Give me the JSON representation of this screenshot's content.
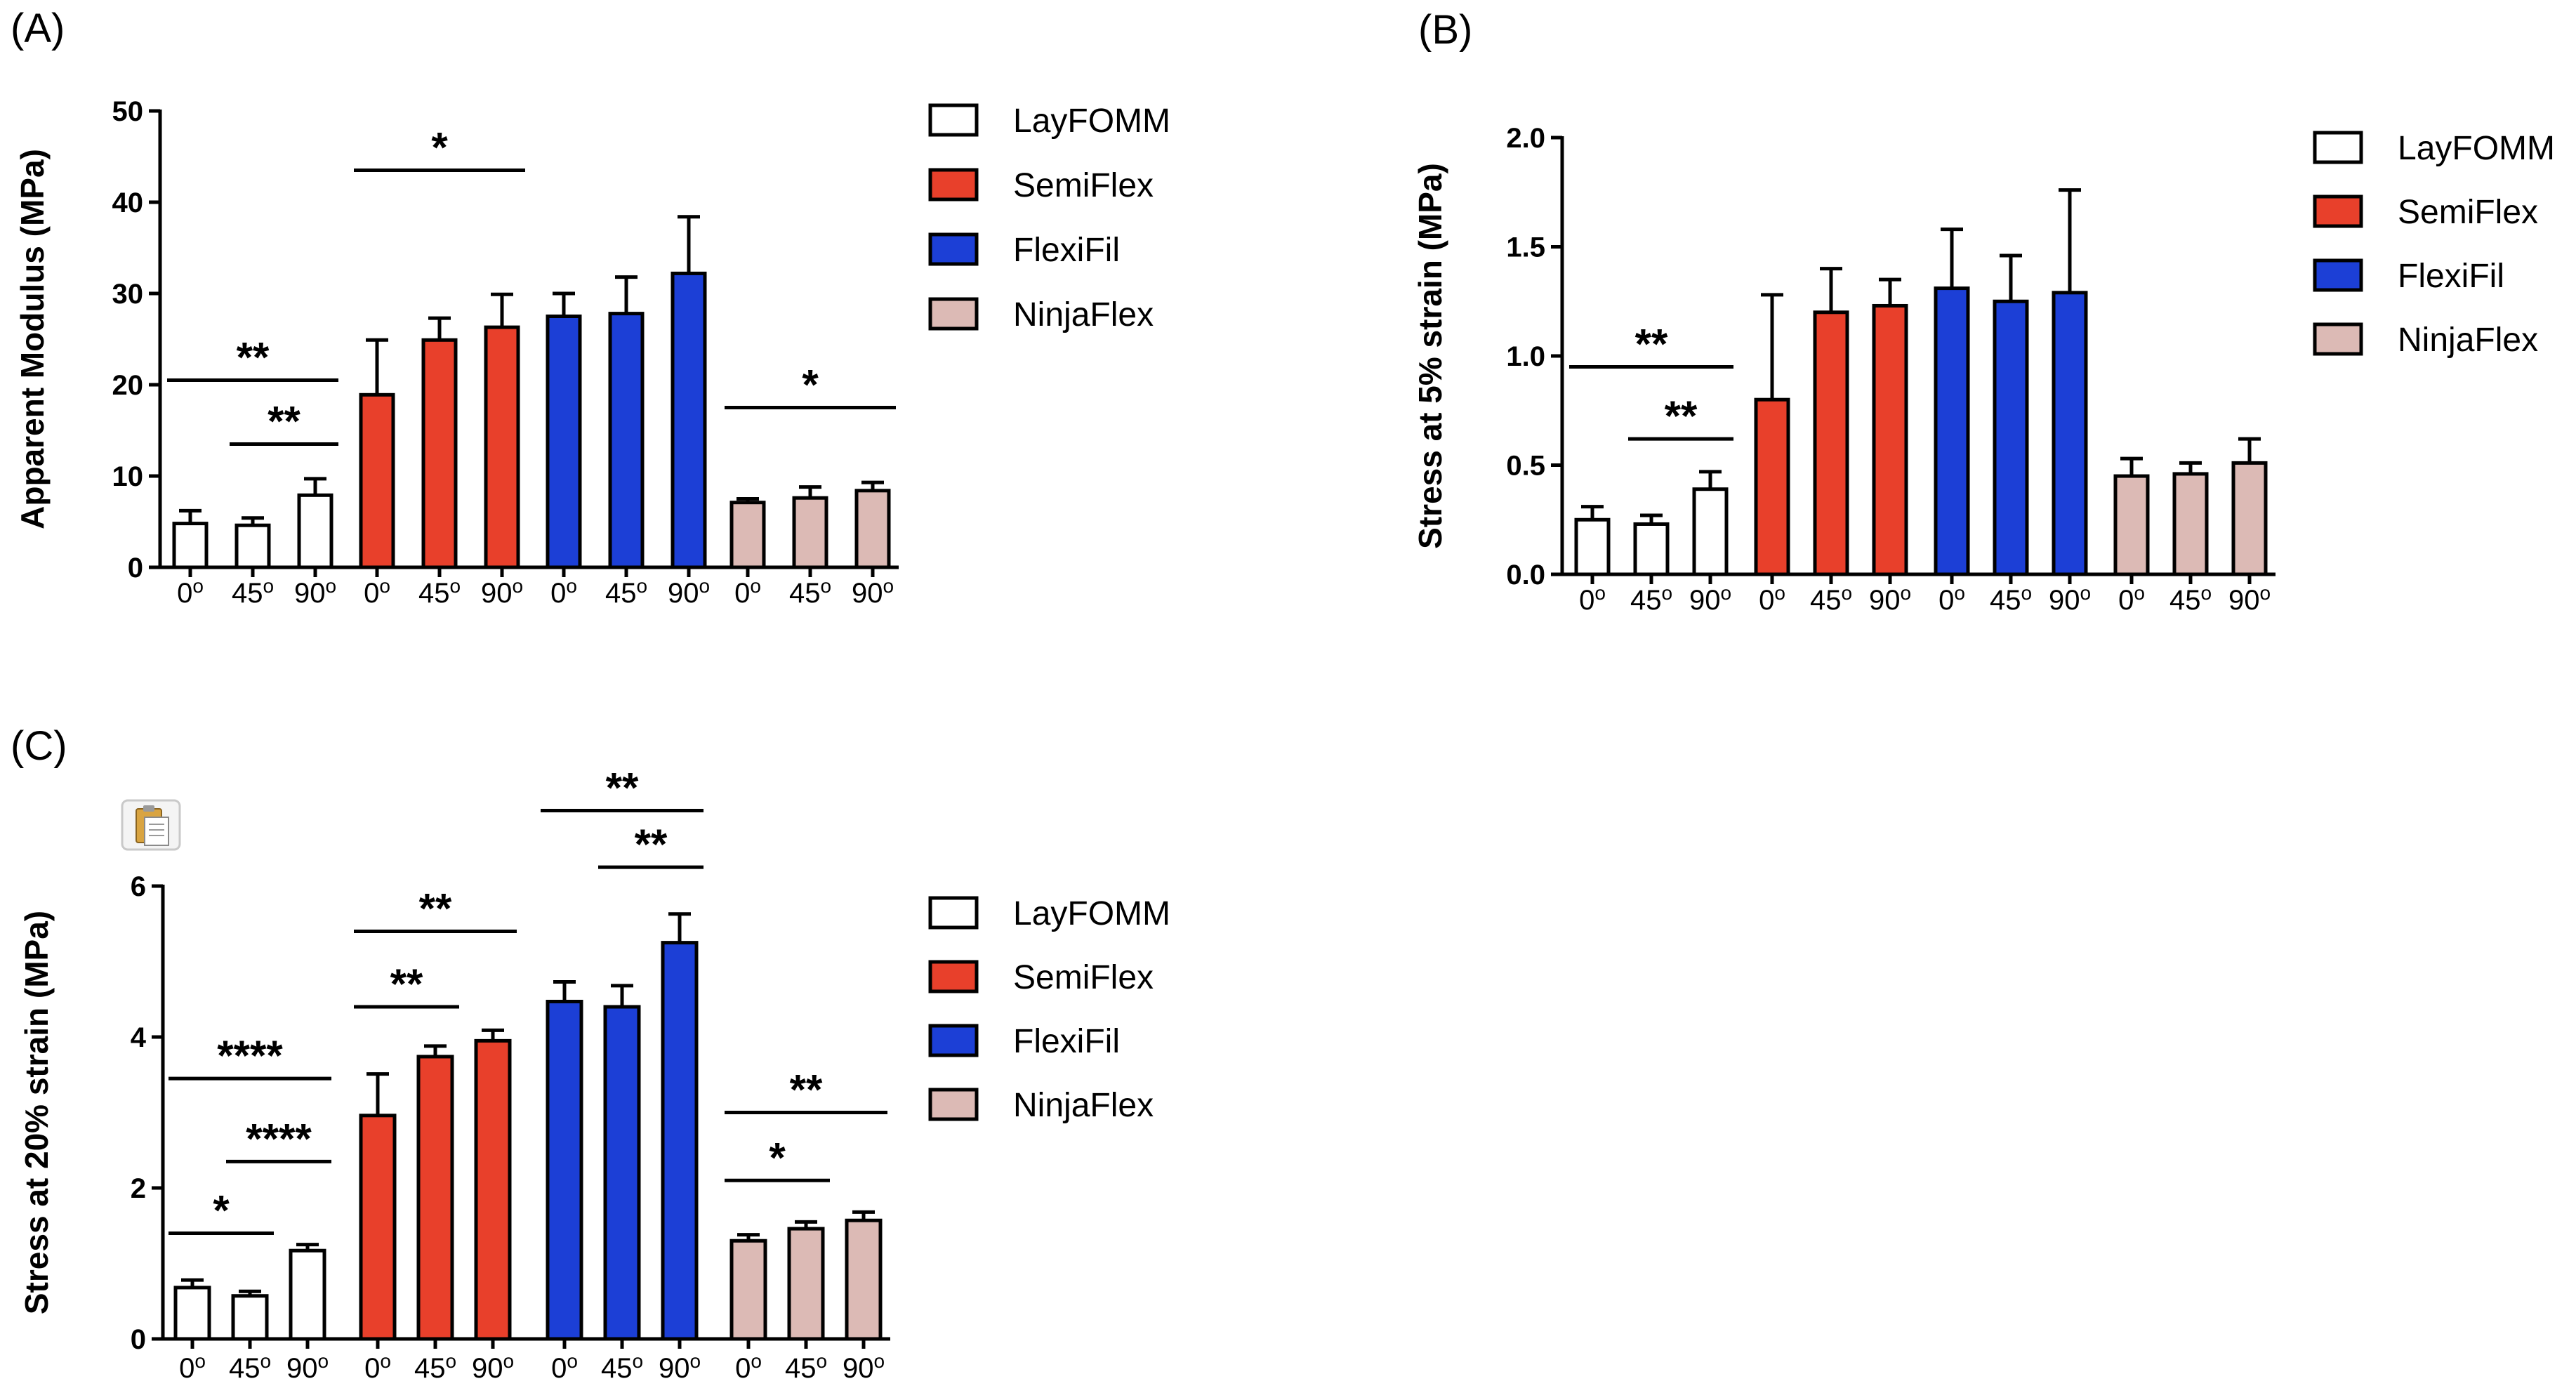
{
  "figure": {
    "panel_labels": [
      "(A)",
      "(B)",
      "(C)"
    ],
    "legend": [
      {
        "name": "LayFOMM",
        "color": "#ffffff"
      },
      {
        "name": "SemiFlex",
        "color": "#e8402b"
      },
      {
        "name": "FlexiFil",
        "color": "#1c3fd6"
      },
      {
        "name": "NinjaFlex",
        "color": "#dcbab5"
      }
    ],
    "degree_symbol": "o",
    "clipboard_icon": "clipboard-icon"
  },
  "chart_data": [
    {
      "type": "bar",
      "panel": "(A)",
      "title": "",
      "ylabel": "Apparent Modulus (MPa)",
      "ylim": [
        0,
        50
      ],
      "yticks": [
        "0",
        "10",
        "20",
        "30",
        "40",
        "50"
      ],
      "groups": [
        "LayFOMM",
        "SemiFlex",
        "FlexiFil",
        "NinjaFlex"
      ],
      "categories": [
        "0",
        "45",
        "90"
      ],
      "series": [
        {
          "name": "LayFOMM",
          "values": [
            4.8,
            4.6,
            7.9
          ],
          "errors": [
            1.4,
            0.8,
            1.8
          ]
        },
        {
          "name": "SemiFlex",
          "values": [
            18.9,
            24.9,
            26.3
          ],
          "errors": [
            6.0,
            2.4,
            3.6
          ]
        },
        {
          "name": "FlexiFil",
          "values": [
            27.5,
            27.8,
            32.2
          ],
          "errors": [
            2.5,
            4.0,
            6.2
          ]
        },
        {
          "name": "NinjaFlex",
          "values": [
            7.1,
            7.6,
            8.4
          ],
          "errors": [
            0.4,
            1.2,
            0.9
          ]
        }
      ],
      "annotations": [
        {
          "label": "**",
          "group": 0,
          "from": 0,
          "to": 2,
          "level": 20.5
        },
        {
          "label": "**",
          "group": 0,
          "from": 1,
          "to": 2,
          "level": 13.5
        },
        {
          "label": "*",
          "group": 1,
          "from": 0,
          "to": 2,
          "level": 43.5
        },
        {
          "label": "*",
          "group": 3,
          "from": 0,
          "to": 2,
          "level": 17.5
        }
      ]
    },
    {
      "type": "bar",
      "panel": "(B)",
      "title": "",
      "ylabel": "Stress at 5% strain (MPa)",
      "ylim": [
        0,
        2.0
      ],
      "yticks": [
        "0.0",
        "0.5",
        "1.0",
        "1.5",
        "2.0"
      ],
      "groups": [
        "LayFOMM",
        "SemiFlex",
        "FlexiFil",
        "NinjaFlex"
      ],
      "categories": [
        "0",
        "45",
        "90"
      ],
      "series": [
        {
          "name": "LayFOMM",
          "values": [
            0.25,
            0.23,
            0.39
          ],
          "errors": [
            0.06,
            0.04,
            0.08
          ]
        },
        {
          "name": "SemiFlex",
          "values": [
            0.8,
            1.2,
            1.23
          ],
          "errors": [
            0.48,
            0.2,
            0.12
          ]
        },
        {
          "name": "FlexiFil",
          "values": [
            1.31,
            1.25,
            1.29
          ],
          "errors": [
            0.27,
            0.21,
            0.47
          ]
        },
        {
          "name": "NinjaFlex",
          "values": [
            0.45,
            0.46,
            0.51
          ],
          "errors": [
            0.08,
            0.05,
            0.11
          ]
        }
      ],
      "annotations": [
        {
          "label": "**",
          "group": 0,
          "from": 0,
          "to": 2,
          "level": 0.95
        },
        {
          "label": "**",
          "group": 0,
          "from": 1,
          "to": 2,
          "level": 0.62
        }
      ]
    },
    {
      "type": "bar",
      "panel": "(C)",
      "title": "",
      "ylabel": "Stress at 20% strain (MPa)",
      "ylim": [
        0,
        6
      ],
      "yticks": [
        "0",
        "2",
        "4",
        "6"
      ],
      "groups": [
        "LayFOMM",
        "SemiFlex",
        "FlexiFil",
        "NinjaFlex"
      ],
      "categories": [
        "0",
        "45",
        "90"
      ],
      "series": [
        {
          "name": "LayFOMM",
          "values": [
            0.68,
            0.57,
            1.17
          ],
          "errors": [
            0.1,
            0.06,
            0.08
          ]
        },
        {
          "name": "SemiFlex",
          "values": [
            2.96,
            3.74,
            3.95
          ],
          "errors": [
            0.55,
            0.14,
            0.14
          ]
        },
        {
          "name": "FlexiFil",
          "values": [
            4.47,
            4.4,
            5.25
          ],
          "errors": [
            0.26,
            0.28,
            0.38
          ]
        },
        {
          "name": "NinjaFlex",
          "values": [
            1.3,
            1.46,
            1.57
          ],
          "errors": [
            0.08,
            0.09,
            0.11
          ]
        }
      ],
      "annotations": [
        {
          "label": "****",
          "group": 0,
          "from": 0,
          "to": 2,
          "level": 3.45
        },
        {
          "label": "****",
          "group": 0,
          "from": 1,
          "to": 2,
          "level": 2.35
        },
        {
          "label": "*",
          "group": 0,
          "from": 0,
          "to": 1,
          "level": 1.4
        },
        {
          "label": "**",
          "group": 1,
          "from": 0,
          "to": 2,
          "level": 5.4
        },
        {
          "label": "**",
          "group": 1,
          "from": 0,
          "to": 1,
          "level": 4.4
        },
        {
          "label": "**",
          "group": 2,
          "from": 0,
          "to": 2,
          "level": 7.0
        },
        {
          "label": "**",
          "group": 2,
          "from": 1,
          "to": 2,
          "level": 6.25
        },
        {
          "label": "**",
          "group": 3,
          "from": 0,
          "to": 2,
          "level": 3.0
        },
        {
          "label": "*",
          "group": 3,
          "from": 0,
          "to": 1,
          "level": 2.1
        }
      ]
    }
  ]
}
